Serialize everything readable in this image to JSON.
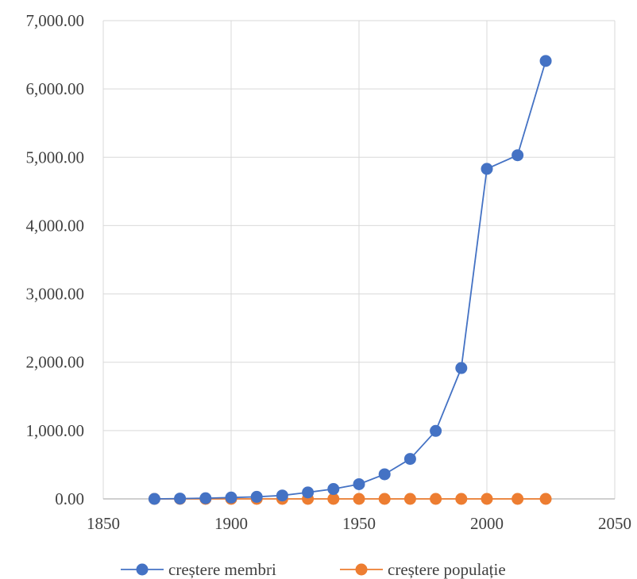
{
  "chart_data": {
    "type": "scatter",
    "title": "",
    "xlabel": "",
    "ylabel": "",
    "xlim": [
      1850,
      2050
    ],
    "ylim": [
      0,
      7000
    ],
    "x_ticks": [
      "1850",
      "1900",
      "1950",
      "2000",
      "2050"
    ],
    "y_ticks": [
      "0.00",
      "1,000.00",
      "2,000.00",
      "3,000.00",
      "4,000.00",
      "5,000.00",
      "6,000.00",
      "7,000.00"
    ],
    "grid": true,
    "legend_position": "bottom",
    "series": [
      {
        "name": "creștere membri",
        "color": "#4472C4",
        "x": [
          1870,
          1880,
          1890,
          1900,
          1910,
          1920,
          1930,
          1940,
          1950,
          1960,
          1970,
          1980,
          1990,
          2000,
          2012,
          2023
        ],
        "y": [
          0,
          5,
          10,
          20,
          30,
          50,
          95,
          145,
          215,
          360,
          585,
          995,
          1915,
          4830,
          5030,
          6410
        ]
      },
      {
        "name": "creștere populație",
        "color": "#ED7D31",
        "x": [
          1870,
          1880,
          1890,
          1900,
          1910,
          1920,
          1930,
          1940,
          1950,
          1960,
          1970,
          1980,
          1990,
          2000,
          2012,
          2023
        ],
        "y": [
          0,
          0,
          0,
          0,
          0,
          0,
          0,
          0,
          0,
          0,
          0,
          0,
          0,
          0,
          0,
          0
        ]
      }
    ]
  }
}
